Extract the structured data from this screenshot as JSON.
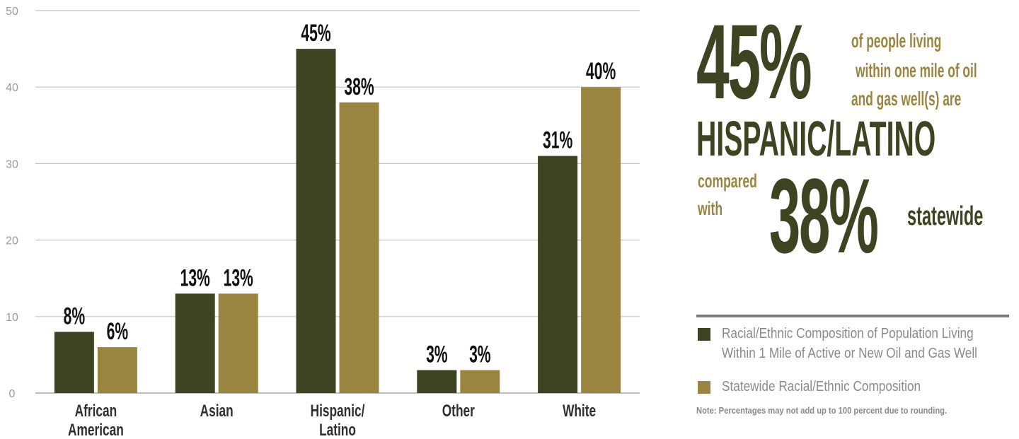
{
  "chart_data": {
    "type": "bar",
    "categories": [
      "African\nAmerican",
      "Asian",
      "Hispanic/\nLatino",
      "Other",
      "White"
    ],
    "series": [
      {
        "name": "Racial/Ethnic Composition of Population Living Within 1 Mile of Active or New Oil and Gas Well",
        "values": [
          8,
          13,
          45,
          3,
          31
        ],
        "labels": [
          "8%",
          "13%",
          "45%",
          "3%",
          "31%"
        ]
      },
      {
        "name": "Statewide Racial/Ethnic Composition",
        "values": [
          6,
          13,
          38,
          3,
          40
        ],
        "labels": [
          "6%",
          "13%",
          "38%",
          "3%",
          "40%"
        ]
      }
    ],
    "ylim": [
      0,
      50
    ],
    "yticks": [
      0,
      10,
      20,
      30,
      40,
      50
    ],
    "grid": true,
    "legend_position": "right",
    "colors": {
      "series1": "#3e4421",
      "series2": "#9a8540",
      "grid": "#c4c4c4",
      "axis_text": "#9a9a9a",
      "label_text": "#111111"
    }
  },
  "callout": {
    "big_pct": "45%",
    "line1": "of people living",
    "line2": "within one mile of oil",
    "line3": "and gas well(s) are",
    "group": "HISPANIC/LATINO",
    "compared1": "compared",
    "compared2": "with",
    "state_pct": "38%",
    "statewide": "statewide",
    "dark_color": "#3e4421",
    "gold_color": "#9a8540"
  },
  "legend": {
    "item1_line1": "Racial/Ethnic Composition of Population Living",
    "item1_line2": "Within 1 Mile of Active or New Oil and Gas Well",
    "item2": "Statewide Racial/Ethnic Composition"
  },
  "note": "Note: Percentages may not add up to 100 percent due to rounding."
}
